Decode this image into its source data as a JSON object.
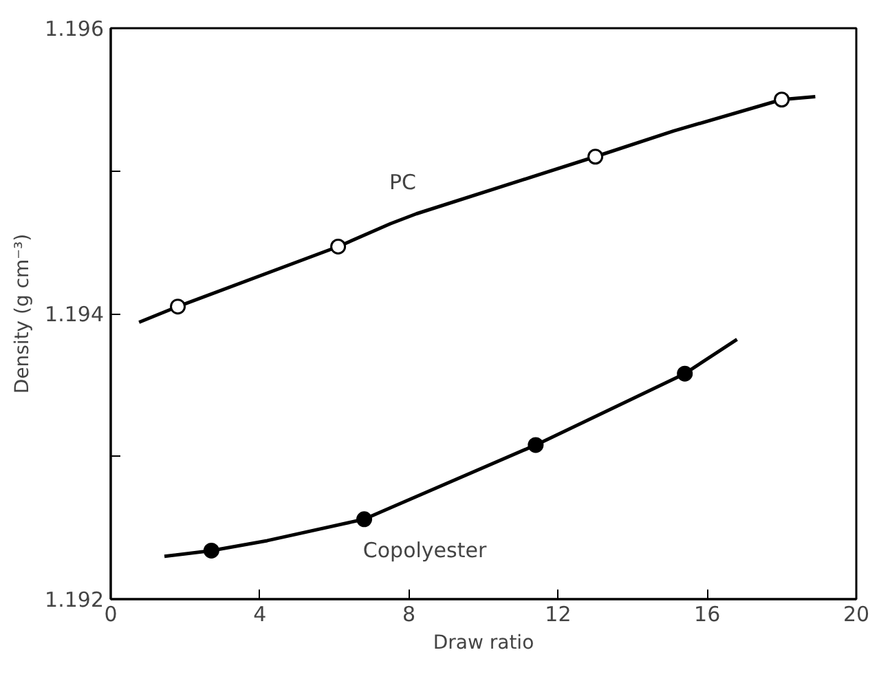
{
  "chart_data": {
    "type": "line",
    "xlabel": "Draw ratio",
    "ylabel": "Density (g cm⁻³)",
    "xlim": [
      0,
      20
    ],
    "xticks": [
      0,
      4,
      8,
      12,
      16,
      20
    ],
    "ylim": [
      1.192,
      1.196
    ],
    "yticks": [
      1.192,
      {
        "value": 1.193,
        "label": null
      },
      1.194,
      {
        "value": 1.195,
        "label": null
      },
      1.196
    ],
    "grid": false,
    "legend": false,
    "series": [
      {
        "name": "PC",
        "marker": "none",
        "color": "#000000",
        "x": [
          0.76,
          1.8,
          6.1,
          7.5,
          8.2,
          13.0,
          15.1,
          18.0,
          18.9
        ],
        "values": [
          1.19394,
          1.19405,
          1.19447,
          1.19463,
          1.1947,
          1.1951,
          1.19528,
          1.1955,
          1.19552
        ]
      },
      {
        "type": "scatter",
        "marker": "circle",
        "color": "#ffffff",
        "x": [
          1.8,
          6.1,
          13.0,
          18.0
        ],
        "values": [
          1.19405,
          1.19447,
          1.1951,
          1.1955
        ]
      },
      {
        "name": "Copolyester",
        "marker": "none",
        "color": "#000000",
        "x": [
          1.44,
          2.7,
          4.2,
          6.8,
          7.5,
          11.4,
          15.4,
          16.8
        ],
        "values": [
          1.1923,
          1.19234,
          1.19241,
          1.19256,
          1.19264,
          1.19308,
          1.19358,
          1.19382
        ]
      },
      {
        "type": "scatter",
        "marker": "circle",
        "color": "#000000",
        "x": [
          2.7,
          6.8,
          11.4,
          15.4
        ],
        "values": [
          1.19234,
          1.19256,
          1.19308,
          1.19358
        ]
      }
    ]
  }
}
